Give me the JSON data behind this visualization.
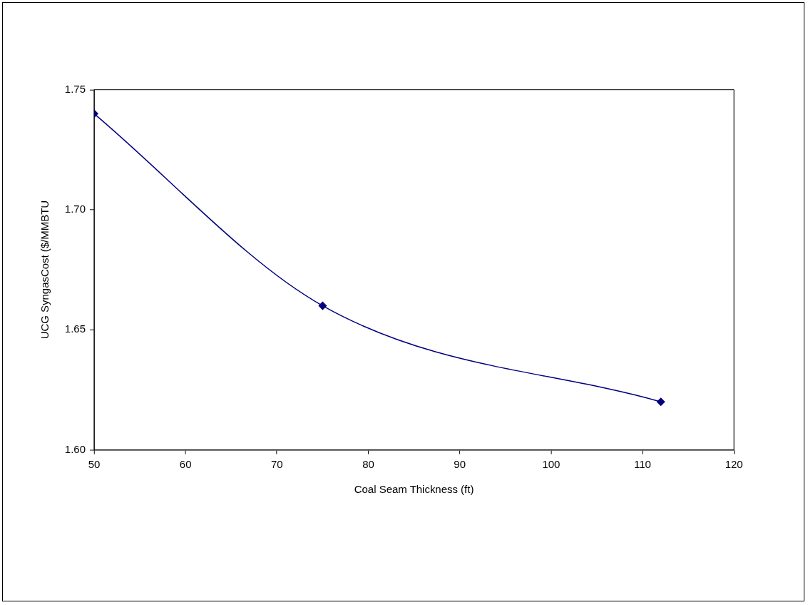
{
  "chart_data": {
    "type": "line",
    "xlabel": "Coal Seam Thickness (ft)",
    "ylabel": "UCG SyngasCost ($/MMBTU",
    "x": [
      50,
      75,
      112
    ],
    "series": [
      {
        "color": "#000080",
        "values": [
          1.74,
          1.66,
          1.62
        ]
      }
    ],
    "xlim": [
      50,
      120
    ],
    "xticks": [
      50,
      60,
      70,
      80,
      90,
      100,
      110,
      120
    ],
    "ylim": [
      1.6,
      1.75
    ],
    "yticks": [
      {
        "value": 1.6,
        "label": "1.60"
      },
      {
        "value": 1.65,
        "label": "1.65"
      },
      {
        "value": 1.7,
        "label": "1.70"
      },
      {
        "value": 1.75,
        "label": "1.75"
      }
    ],
    "grid": false,
    "legend": false,
    "marker": "diamond",
    "line_style": "solid"
  }
}
